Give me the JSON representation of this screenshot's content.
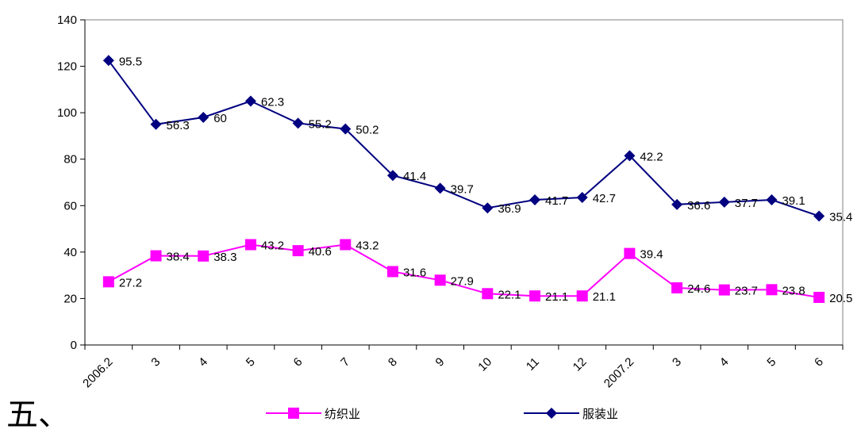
{
  "heading": "五、",
  "chart_data": {
    "type": "line",
    "categories": [
      "2006.2",
      "3",
      "4",
      "5",
      "6",
      "7",
      "8",
      "9",
      "10",
      "11",
      "12",
      "2007.2",
      "3",
      "4",
      "5",
      "6"
    ],
    "ylim": [
      0,
      140
    ],
    "yticks": [
      0,
      20,
      40,
      60,
      80,
      100,
      120,
      140
    ],
    "grid": false,
    "legend_position": "bottom",
    "series": [
      {
        "name": "纺织业",
        "color": "#ff00ff",
        "marker": "square",
        "values": [
          27.2,
          38.4,
          38.3,
          43.2,
          40.6,
          43.2,
          31.6,
          27.9,
          22.1,
          21.1,
          21.1,
          39.4,
          24.6,
          23.7,
          23.8,
          20.5
        ],
        "labels": [
          "27.2",
          "38.4",
          "38.3",
          "43.2",
          "40.6",
          "43.2",
          "31.6",
          "27.9",
          "22.1",
          "21.1",
          "21.1",
          "39.4",
          "24.6",
          "23.7",
          "23.8",
          "20.5"
        ]
      },
      {
        "name": "服装业",
        "color": "#000080",
        "marker": "diamond",
        "values": [
          122.5,
          95,
          98,
          105,
          95.5,
          93,
          73,
          67.5,
          59,
          62.5,
          63.5,
          81.5,
          60.5,
          61.5,
          62.5,
          55.5
        ],
        "labels": [
          "95.5",
          "56.3",
          "60",
          "62.3",
          "55.2",
          "50.2",
          "41.4",
          "39.7",
          "36.9",
          "41.7",
          "42.7",
          "42.2",
          "36.6",
          "37.7",
          "39.1",
          "35.4"
        ]
      }
    ]
  }
}
